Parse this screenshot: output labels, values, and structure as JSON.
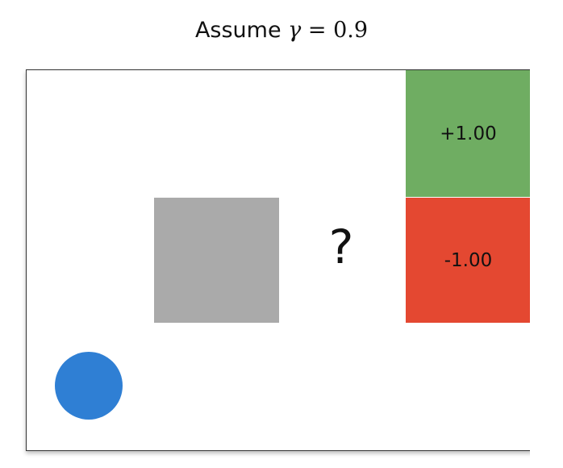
{
  "title": {
    "prefix": "Assume ",
    "symbol": "γ",
    "equals_value": " = 0.9"
  },
  "grid": {
    "goal_reward": "+1.00",
    "pit_reward": "-1.00",
    "unknown_marker": "?",
    "colors": {
      "goal": "#6fad62",
      "pit": "#e44831",
      "wall": "#aaaaaa",
      "agent": "#2f7fd4"
    }
  }
}
